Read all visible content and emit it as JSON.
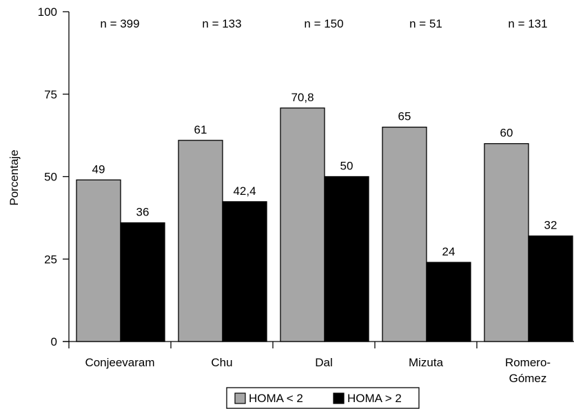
{
  "chart_data": {
    "type": "bar",
    "ylabel": "Porcentaje",
    "ylim": [
      0,
      100
    ],
    "yticks": [
      0,
      25,
      50,
      75,
      100
    ],
    "categories": [
      [
        "Conjeevaram"
      ],
      [
        "Chu"
      ],
      [
        "Dal"
      ],
      [
        "Mizuta"
      ],
      [
        "Romero-",
        "Gómez"
      ]
    ],
    "sample_sizes": [
      "n = 399",
      "n = 133",
      "n = 150",
      "n = 51",
      "n = 131"
    ],
    "series": [
      {
        "name": "HOMA < 2",
        "color": "#a6a6a6",
        "values": [
          49,
          61,
          70.8,
          65,
          60
        ],
        "labels": [
          "49",
          "61",
          "70,8",
          "65",
          "60"
        ]
      },
      {
        "name": "HOMA > 2",
        "color": "#000000",
        "values": [
          36,
          42.4,
          50,
          24,
          32
        ],
        "labels": [
          "36",
          "42,4",
          "50",
          "24",
          "32"
        ]
      }
    ],
    "legend_position": "bottom-center"
  }
}
